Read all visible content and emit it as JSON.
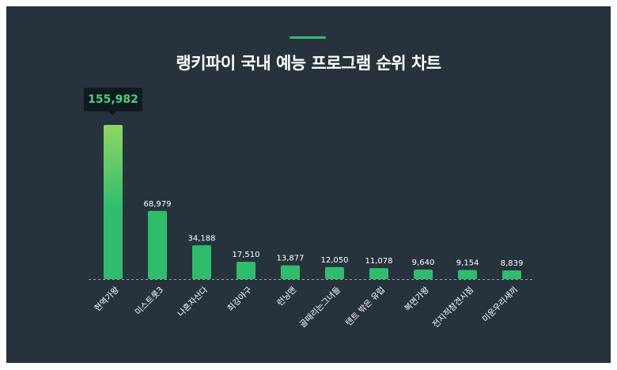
{
  "title": "랭키파이 국내 예능 프로그램 순위 차트",
  "colors": {
    "background": "#26333d",
    "accent": "#2fc06c",
    "bar": "#2fbd6c",
    "bar_top_highlight": "#8ed860",
    "tooltip_bg": "#111a20",
    "tooltip_text": "#48d07f"
  },
  "tooltip": {
    "value_label": "155,982"
  },
  "chart_data": {
    "type": "bar",
    "title": "랭키파이 국내 예능 프로그램 순위 차트",
    "xlabel": "",
    "ylabel": "",
    "grid": false,
    "ylim": [
      0,
      160000
    ],
    "categories": [
      "현역가왕",
      "미스트롯3",
      "나혼자산다",
      "최강야구",
      "런닝맨",
      "골때리는그녀들",
      "텐트 밖은 유럽",
      "복면가왕",
      "전지적참견시점",
      "미운우리새끼"
    ],
    "values": [
      155982,
      68979,
      34188,
      17510,
      13877,
      12050,
      11078,
      9640,
      9154,
      8839
    ],
    "value_labels": [
      "155,982",
      "68,979",
      "34,188",
      "17,510",
      "13,877",
      "12,050",
      "11,078",
      "9,640",
      "9,154",
      "8,839"
    ]
  }
}
